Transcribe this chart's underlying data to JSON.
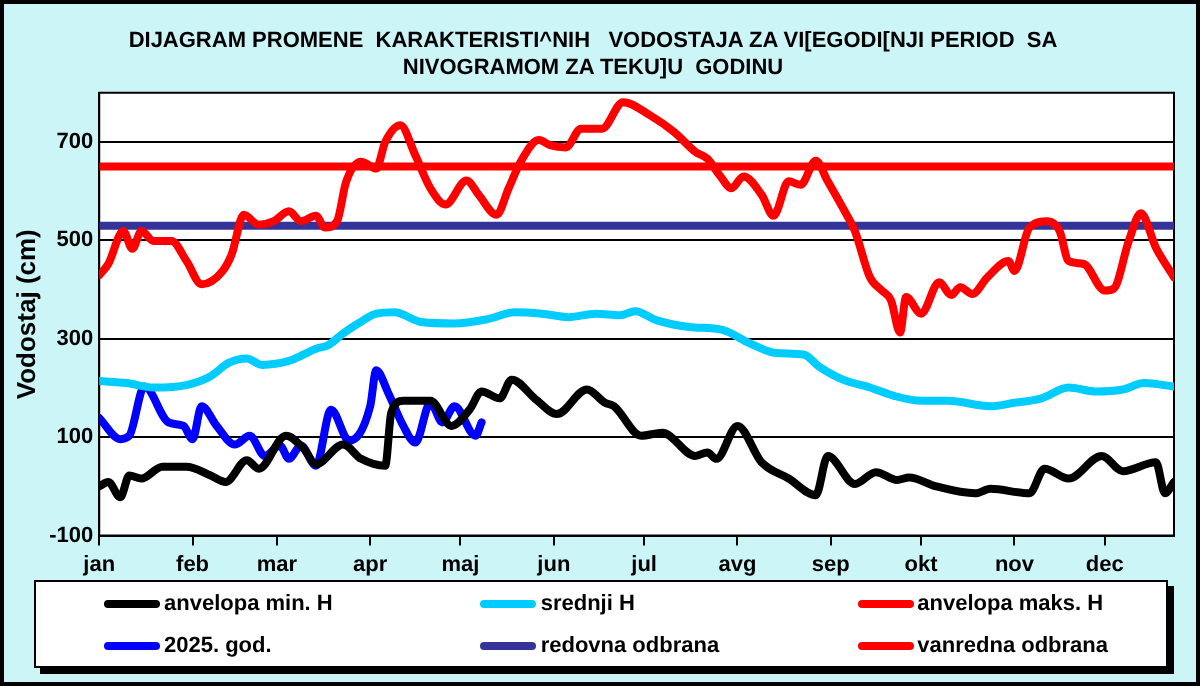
{
  "chart_data": {
    "type": "line",
    "title": "DIJAGRAM PROMENE  KARAKTERISTI^NIH   VODOSTAJA ZA VI[EGODI[NJI PERIOD  SA\nNIVOGRAMOM ZA TEKU]U  GODINU",
    "ylabel": "Vodostaj (cm)",
    "xlim": [
      "--01-01",
      "--12-24"
    ],
    "xticks": [
      {
        "value": "--01-01",
        "label": "jan"
      },
      {
        "value": "--02-01",
        "label": "feb"
      },
      {
        "value": "--03-01",
        "label": "mar"
      },
      {
        "value": "--04-01",
        "label": "apr"
      },
      {
        "value": "--05-01",
        "label": "maj"
      },
      {
        "value": "--06-01",
        "label": "jun"
      },
      {
        "value": "--07-01",
        "label": "jul"
      },
      {
        "value": "--08-01",
        "label": "avg"
      },
      {
        "value": "--09-01",
        "label": "sep"
      },
      {
        "value": "--10-01",
        "label": "okt"
      },
      {
        "value": "--11-01",
        "label": "nov"
      },
      {
        "value": "--12-01",
        "label": "dec"
      }
    ],
    "ylim": [
      -100,
      800
    ],
    "yticks": [
      -100,
      100,
      300,
      500,
      700
    ],
    "grid": "y",
    "legend": "bottom",
    "marker": "none",
    "line_style": "solid",
    "series": [
      {
        "name": "anvelopa min. H",
        "color": "#000000",
        "x": [
          "--01-01",
          "--01-04",
          "--01-08",
          "--01-11",
          "--01-15",
          "--01-22",
          "--01-30",
          "--02-07",
          "--02-12",
          "--02-19",
          "--02-23",
          "--03-04",
          "--03-10",
          "--03-14",
          "--03-23",
          "--03-29",
          "--04-06",
          "--04-08",
          "--04-12",
          "--04-21",
          "--04-28",
          "--05-04",
          "--05-08",
          "--05-14",
          "--05-18",
          "--05-26",
          "--06-02",
          "--06-12",
          "--06-18",
          "--06-21",
          "--06-30",
          "--07-07",
          "--07-18",
          "--07-22",
          "--07-25",
          "--08-01",
          "--08-09",
          "--08-18",
          "--08-27",
          "--08-31",
          "--09-09",
          "--09-16",
          "--09-23",
          "--09-27",
          "--10-06",
          "--10-19",
          "--10-24",
          "--11-06",
          "--11-11",
          "--11-19",
          "--11-30",
          "--12-07",
          "--12-18",
          "--12-21",
          "--12-24"
        ],
        "values": [
          0,
          9,
          -22,
          22,
          16,
          40,
          40,
          22,
          9,
          53,
          36,
          103,
          76,
          45,
          85,
          56,
          42,
          150,
          174,
          174,
          123,
          156,
          193,
          179,
          217,
          177,
          147,
          197,
          170,
          163,
          103,
          109,
          62,
          69,
          56,
          123,
          49,
          16,
          -18,
          62,
          5,
          29,
          13,
          18,
          0,
          -14,
          -5,
          -14,
          36,
          16,
          62,
          31,
          49,
          -14,
          9
        ]
      },
      {
        "name": "srednji H",
        "color": "#00ccff",
        "x": [
          "--01-01",
          "--01-10",
          "--01-19",
          "--01-30",
          "--02-07",
          "--02-13",
          "--02-19",
          "--02-24",
          "--03-05",
          "--03-14",
          "--03-18",
          "--03-23",
          "--03-28",
          "--04-03",
          "--04-09",
          "--04-18",
          "--04-29",
          "--05-10",
          "--05-19",
          "--05-28",
          "--06-06",
          "--06-15",
          "--06-23",
          "--06-28",
          "--07-05",
          "--07-16",
          "--07-27",
          "--08-05",
          "--08-14",
          "--08-23",
          "--08-28",
          "--09-05",
          "--09-14",
          "--09-22",
          "--10-01",
          "--10-10",
          "--10-24",
          "--11-01",
          "--11-10",
          "--11-19",
          "--11-28",
          "--12-07",
          "--12-14",
          "--12-24"
        ],
        "values": [
          214,
          210,
          201,
          206,
          224,
          251,
          260,
          247,
          255,
          280,
          287,
          311,
          331,
          351,
          354,
          334,
          331,
          340,
          354,
          351,
          344,
          351,
          348,
          356,
          338,
          324,
          318,
          291,
          271,
          268,
          244,
          217,
          201,
          184,
          174,
          174,
          163,
          170,
          179,
          201,
          193,
          197,
          210,
          203
        ]
      },
      {
        "name": "anvelopa maks. H",
        "color": "#ff0000",
        "x": [
          "--01-01",
          "--01-04",
          "--01-09",
          "--01-12",
          "--01-15",
          "--01-19",
          "--01-25",
          "--01-30",
          "--02-04",
          "--02-11",
          "--02-14",
          "--02-18",
          "--02-23",
          "--02-28",
          "--03-05",
          "--03-09",
          "--03-14",
          "--03-17",
          "--03-21",
          "--03-24",
          "--03-29",
          "--04-03",
          "--04-06",
          "--04-11",
          "--04-16",
          "--04-21",
          "--04-26",
          "--05-03",
          "--05-07",
          "--05-13",
          "--05-17",
          "--05-21",
          "--05-27",
          "--05-31",
          "--06-05",
          "--06-10",
          "--06-17",
          "--06-24",
          "--07-03",
          "--07-11",
          "--07-18",
          "--07-22",
          "--07-26",
          "--07-30",
          "--08-03",
          "--08-09",
          "--08-13",
          "--08-18",
          "--08-22",
          "--08-27",
          "--08-31",
          "--09-05",
          "--09-09",
          "--09-14",
          "--09-18",
          "--09-21",
          "--09-24",
          "--09-26",
          "--10-01",
          "--10-07",
          "--10-11",
          "--10-14",
          "--10-18",
          "--10-23",
          "--10-30",
          "--11-01",
          "--11-06",
          "--11-12",
          "--11-16",
          "--11-19",
          "--11-24",
          "--12-01",
          "--12-04",
          "--12-09",
          "--12-13",
          "--12-18",
          "--12-24"
        ],
        "values": [
          429,
          452,
          519,
          483,
          519,
          499,
          499,
          458,
          411,
          438,
          472,
          552,
          532,
          539,
          559,
          539,
          550,
          526,
          539,
          619,
          660,
          646,
          700,
          734,
          673,
          606,
          573,
          622,
          593,
          552,
          606,
          660,
          704,
          693,
          689,
          727,
          727,
          781,
          754,
          720,
          680,
          666,
          633,
          606,
          630,
          593,
          550,
          620,
          613,
          662,
          620,
          566,
          519,
          425,
          398,
          378,
          313,
          385,
          351,
          415,
          389,
          405,
          391,
          425,
          458,
          438,
          526,
          539,
          519,
          458,
          452,
          398,
          402,
          499,
          555,
          485,
          425
        ]
      },
      {
        "name": "2025. god.",
        "color": "#0000ff",
        "x": [
          "--01-01",
          "--01-08",
          "--01-11",
          "--01-16",
          "--01-24",
          "--01-29",
          "--02-01",
          "--02-04",
          "--02-09",
          "--02-15",
          "--02-20",
          "--02-25",
          "--03-02",
          "--03-05",
          "--03-09",
          "--03-14",
          "--03-19",
          "--03-25",
          "--04-01",
          "--04-03",
          "--04-07",
          "--04-12",
          "--04-16",
          "--04-21",
          "--04-25",
          "--04-29",
          "--05-06",
          "--05-08"
        ],
        "values": [
          139,
          96,
          103,
          203,
          130,
          123,
          96,
          163,
          123,
          85,
          103,
          62,
          83,
          56,
          83,
          42,
          156,
          93,
          163,
          236,
          190,
          123,
          89,
          170,
          130,
          163,
          103,
          130
        ]
      }
    ],
    "ref_lines": [
      {
        "axis": "y",
        "value": 530,
        "label": "redovna odbrana",
        "color": "#333399"
      },
      {
        "axis": "y",
        "value": 650,
        "label": "vanredna odbrana",
        "color": "#ff0000"
      }
    ]
  }
}
